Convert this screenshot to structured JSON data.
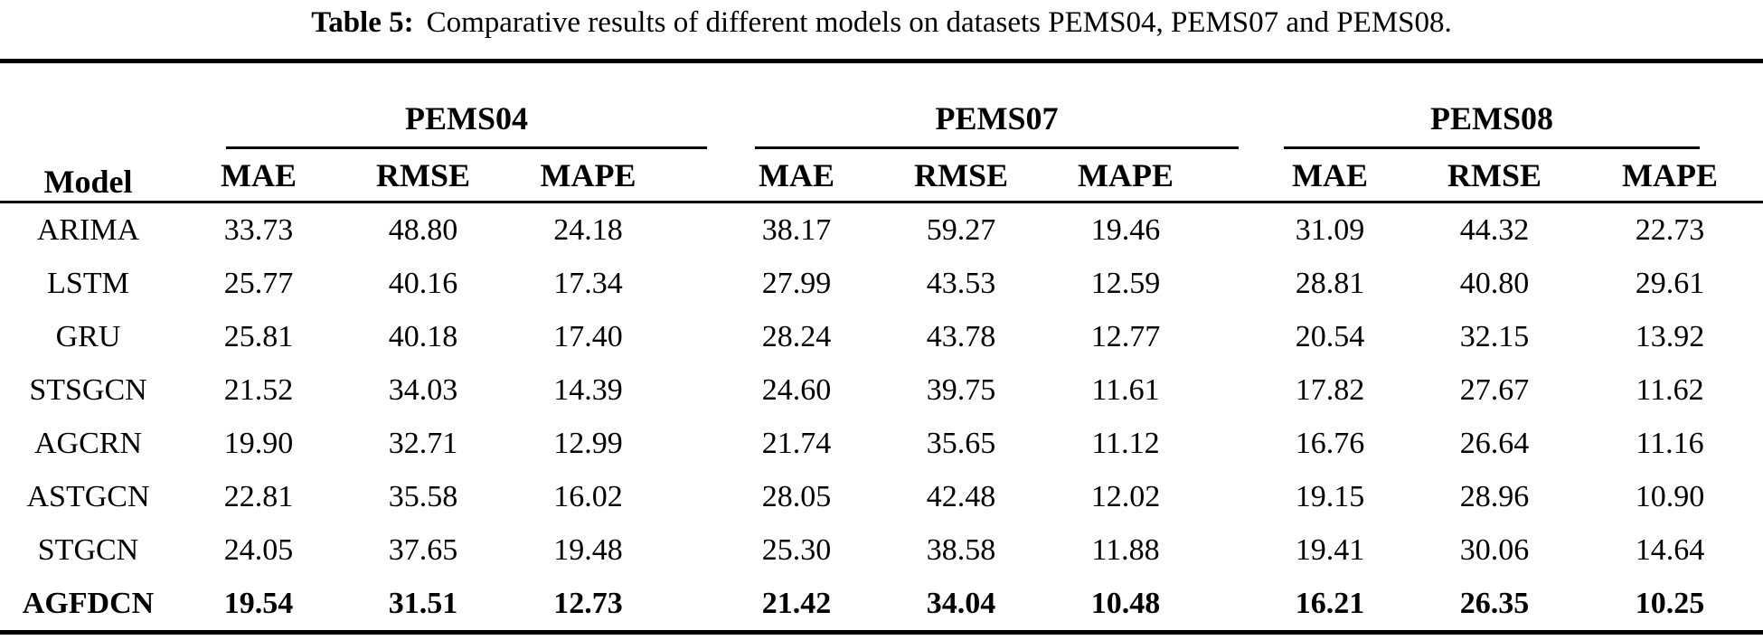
{
  "page": {
    "background_color": "#ffffff",
    "text_color": "#000000",
    "rule_color": "#000000"
  },
  "caption": {
    "label": "Table 5:",
    "text": "Comparative results of different models on datasets PEMS04, PEMS07 and PEMS08."
  },
  "table": {
    "model_column_header": "Model",
    "dataset_groups": [
      "PEMS04",
      "PEMS07",
      "PEMS08"
    ],
    "metric_headers": [
      "MAE",
      "RMSE",
      "MAPE"
    ],
    "rows": [
      {
        "model": "ARIMA",
        "bold": false,
        "values": [
          "33.73",
          "48.80",
          "24.18",
          "38.17",
          "59.27",
          "19.46",
          "31.09",
          "44.32",
          "22.73"
        ]
      },
      {
        "model": "LSTM",
        "bold": false,
        "values": [
          "25.77",
          "40.16",
          "17.34",
          "27.99",
          "43.53",
          "12.59",
          "28.81",
          "40.80",
          "29.61"
        ]
      },
      {
        "model": "GRU",
        "bold": false,
        "values": [
          "25.81",
          "40.18",
          "17.40",
          "28.24",
          "43.78",
          "12.77",
          "20.54",
          "32.15",
          "13.92"
        ]
      },
      {
        "model": "STSGCN",
        "bold": false,
        "values": [
          "21.52",
          "34.03",
          "14.39",
          "24.60",
          "39.75",
          "11.61",
          "17.82",
          "27.67",
          "11.62"
        ]
      },
      {
        "model": "AGCRN",
        "bold": false,
        "values": [
          "19.90",
          "32.71",
          "12.99",
          "21.74",
          "35.65",
          "11.12",
          "16.76",
          "26.64",
          "11.16"
        ]
      },
      {
        "model": "ASTGCN",
        "bold": false,
        "values": [
          "22.81",
          "35.58",
          "16.02",
          "28.05",
          "42.48",
          "12.02",
          "19.15",
          "28.96",
          "10.90"
        ]
      },
      {
        "model": "STGCN",
        "bold": false,
        "values": [
          "24.05",
          "37.65",
          "19.48",
          "25.30",
          "38.58",
          "11.88",
          "19.41",
          "30.06",
          "14.64"
        ]
      },
      {
        "model": "AGFDCN",
        "bold": true,
        "values": [
          "19.54",
          "31.51",
          "12.73",
          "21.42",
          "34.04",
          "10.48",
          "16.21",
          "26.35",
          "10.25"
        ]
      }
    ]
  }
}
